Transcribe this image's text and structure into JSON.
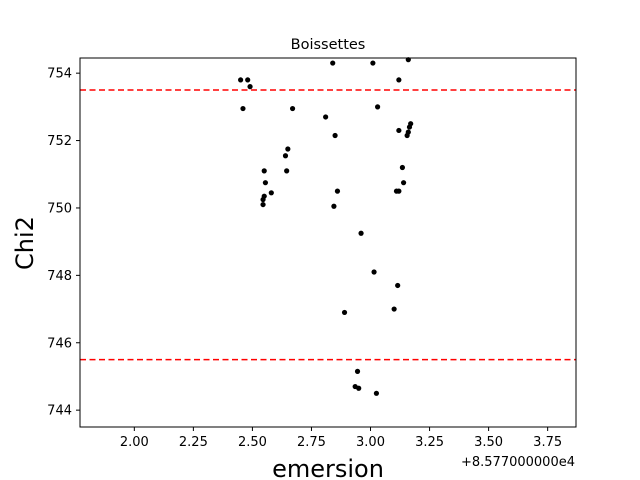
{
  "chart_data": {
    "type": "scatter",
    "title": "Boissettes",
    "xlabel": "emersion",
    "ylabel": "Chi2",
    "x_offset_label": "+8.577000000e4",
    "xlim": [
      1.77,
      3.87
    ],
    "ylim": [
      743.5,
      754.45
    ],
    "x_ticks": [
      2.0,
      2.25,
      2.5,
      2.75,
      3.0,
      3.25,
      3.5,
      3.75
    ],
    "x_tick_labels": [
      "2.00",
      "2.25",
      "2.50",
      "2.75",
      "3.00",
      "3.25",
      "3.50",
      "3.75"
    ],
    "y_ticks": [
      744,
      746,
      748,
      750,
      752,
      754
    ],
    "y_tick_labels": [
      "744",
      "746",
      "748",
      "750",
      "752",
      "754"
    ],
    "grid": false,
    "marker_color": "#000000",
    "reference_line_color": "#ff0000",
    "hlines": [
      753.5,
      745.5
    ],
    "points": [
      {
        "x": 2.45,
        "y": 753.8
      },
      {
        "x": 2.48,
        "y": 753.8
      },
      {
        "x": 2.49,
        "y": 753.6
      },
      {
        "x": 2.46,
        "y": 752.95
      },
      {
        "x": 2.67,
        "y": 752.95
      },
      {
        "x": 2.84,
        "y": 754.3
      },
      {
        "x": 3.01,
        "y": 754.3
      },
      {
        "x": 3.16,
        "y": 754.4
      },
      {
        "x": 3.12,
        "y": 753.8
      },
      {
        "x": 3.03,
        "y": 753.0
      },
      {
        "x": 2.81,
        "y": 752.7
      },
      {
        "x": 2.85,
        "y": 752.15
      },
      {
        "x": 3.12,
        "y": 752.3
      },
      {
        "x": 3.17,
        "y": 752.5
      },
      {
        "x": 3.165,
        "y": 752.4
      },
      {
        "x": 3.16,
        "y": 752.25
      },
      {
        "x": 3.155,
        "y": 752.15
      },
      {
        "x": 2.65,
        "y": 751.75
      },
      {
        "x": 2.64,
        "y": 751.55
      },
      {
        "x": 2.645,
        "y": 751.1
      },
      {
        "x": 2.55,
        "y": 751.1
      },
      {
        "x": 2.555,
        "y": 750.75
      },
      {
        "x": 2.58,
        "y": 750.45
      },
      {
        "x": 2.55,
        "y": 750.35
      },
      {
        "x": 2.545,
        "y": 750.25
      },
      {
        "x": 2.545,
        "y": 750.1
      },
      {
        "x": 2.86,
        "y": 750.5
      },
      {
        "x": 2.845,
        "y": 750.05
      },
      {
        "x": 3.135,
        "y": 751.2
      },
      {
        "x": 3.14,
        "y": 750.75
      },
      {
        "x": 3.11,
        "y": 750.5
      },
      {
        "x": 3.12,
        "y": 750.5
      },
      {
        "x": 2.96,
        "y": 749.25
      },
      {
        "x": 3.015,
        "y": 748.1
      },
      {
        "x": 3.115,
        "y": 747.7
      },
      {
        "x": 3.1,
        "y": 747.0
      },
      {
        "x": 2.89,
        "y": 746.9
      },
      {
        "x": 2.945,
        "y": 745.15
      },
      {
        "x": 2.935,
        "y": 744.7
      },
      {
        "x": 2.95,
        "y": 744.65
      },
      {
        "x": 3.025,
        "y": 744.5
      }
    ]
  }
}
